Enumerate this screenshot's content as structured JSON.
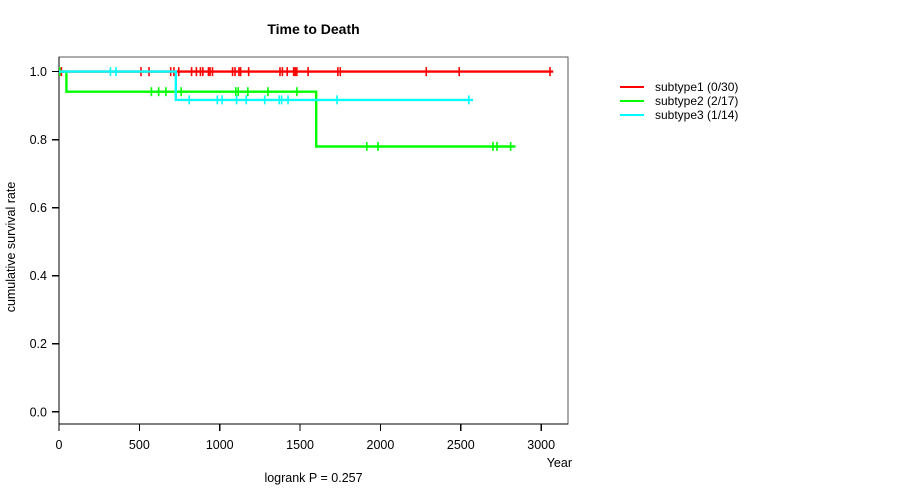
{
  "chart_data": {
    "type": "line",
    "subtype": "kaplan_meier_step",
    "title": "Time to Death",
    "xlabel": "Year",
    "ylabel": "cumulative survival rate",
    "annotation": "logrank P = 0.257",
    "xlim": [
      0,
      3167
    ],
    "ylim": [
      -0.036,
      1.043
    ],
    "xticks": [
      0,
      500,
      1000,
      1500,
      2000,
      2500,
      3000
    ],
    "yticks": [
      0.0,
      0.2,
      0.4,
      0.6,
      0.8,
      1.0
    ],
    "grid": false,
    "legend_position": "right",
    "box_color": "#595959",
    "axis_color": "#000000",
    "series": [
      {
        "name": "subtype1 (0/30)",
        "color": "#ff0000",
        "steps": [
          [
            0,
            1.0
          ],
          [
            3075,
            1.0
          ]
        ],
        "censors": [
          [
            15,
            1.0
          ],
          [
            510,
            1.0
          ],
          [
            560,
            1.0
          ],
          [
            695,
            1.0
          ],
          [
            715,
            1.0
          ],
          [
            745,
            1.0
          ],
          [
            825,
            1.0
          ],
          [
            855,
            1.0
          ],
          [
            880,
            1.0
          ],
          [
            895,
            1.0
          ],
          [
            930,
            1.0
          ],
          [
            940,
            1.0
          ],
          [
            955,
            1.0
          ],
          [
            1080,
            1.0
          ],
          [
            1095,
            1.0
          ],
          [
            1120,
            1.0
          ],
          [
            1130,
            1.0
          ],
          [
            1180,
            1.0
          ],
          [
            1375,
            1.0
          ],
          [
            1390,
            1.0
          ],
          [
            1420,
            1.0
          ],
          [
            1460,
            1.0
          ],
          [
            1470,
            1.0
          ],
          [
            1480,
            1.0
          ],
          [
            1550,
            1.0
          ],
          [
            1735,
            1.0
          ],
          [
            1750,
            1.0
          ],
          [
            2285,
            1.0
          ],
          [
            2490,
            1.0
          ],
          [
            3055,
            1.0
          ]
        ]
      },
      {
        "name": "subtype2 (2/17)",
        "color": "#00ff00",
        "steps": [
          [
            0,
            1.0
          ],
          [
            46,
            0.941
          ],
          [
            1600,
            0.78
          ],
          [
            2840,
            0.78
          ]
        ],
        "censors": [
          [
            5,
            1.0
          ],
          [
            575,
            0.941
          ],
          [
            620,
            0.941
          ],
          [
            665,
            0.941
          ],
          [
            760,
            0.941
          ],
          [
            1100,
            0.941
          ],
          [
            1115,
            0.941
          ],
          [
            1175,
            0.941
          ],
          [
            1300,
            0.941
          ],
          [
            1480,
            0.941
          ],
          [
            1915,
            0.78
          ],
          [
            1985,
            0.78
          ],
          [
            2700,
            0.78
          ],
          [
            2725,
            0.78
          ],
          [
            2810,
            0.78
          ]
        ]
      },
      {
        "name": "subtype3 (1/14)",
        "color": "#00ffff",
        "steps": [
          [
            0,
            1.0
          ],
          [
            727,
            0.917
          ],
          [
            2575,
            0.917
          ]
        ],
        "censors": [
          [
            320,
            1.0
          ],
          [
            355,
            1.0
          ],
          [
            810,
            0.917
          ],
          [
            985,
            0.917
          ],
          [
            1015,
            0.917
          ],
          [
            1105,
            0.917
          ],
          [
            1165,
            0.917
          ],
          [
            1280,
            0.917
          ],
          [
            1370,
            0.917
          ],
          [
            1385,
            0.917
          ],
          [
            1425,
            0.917
          ],
          [
            1730,
            0.917
          ],
          [
            2550,
            0.917
          ]
        ]
      }
    ]
  }
}
